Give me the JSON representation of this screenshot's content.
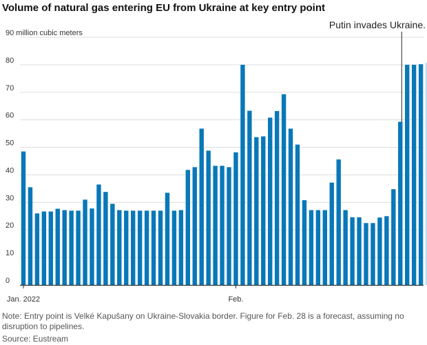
{
  "chart_data": {
    "type": "bar",
    "title": "Volume of natural gas entering EU from Ukraine at key entry point",
    "unit_label": "90 million cubic meters",
    "ylim": [
      0,
      90
    ],
    "yticks": [
      0,
      10,
      20,
      30,
      40,
      50,
      60,
      70,
      80
    ],
    "x_tick_labels": [
      {
        "label": "Jan. 2022",
        "index": 0
      },
      {
        "label": "Feb.",
        "index": 31
      }
    ],
    "grid": true,
    "colors": {
      "bar": "#0878b8",
      "forecast": "#b9dcf2",
      "grid": "#dddddd",
      "axis": "#333333"
    },
    "values": [
      48.5,
      35.5,
      26,
      26.7,
      26.7,
      27.7,
      27.2,
      27,
      27,
      31,
      27.8,
      36.5,
      33.8,
      29.5,
      27.2,
      27,
      27,
      27,
      27,
      27,
      27,
      33.5,
      27,
      27.2,
      41.8,
      42.8,
      56.8,
      48.8,
      43.3,
      43.3,
      42.8,
      48.2,
      80,
      63.3,
      53.7,
      54,
      60.8,
      63.2,
      69.3,
      56.8,
      51,
      30.8,
      27.2,
      27.2,
      27.2,
      37.2,
      45.6,
      27.2,
      24.6,
      24.6,
      22.5,
      22.5,
      24.5,
      25,
      34.8,
      59.3,
      80,
      80,
      80.2,
      80.8
    ],
    "forecast_index": 59,
    "annotation": {
      "text": "Putin invades Ukraine.",
      "index": 55
    },
    "footnote": "Note: Entry point is Velké Kapušany on Ukraine-Slovakia border. Figure for Feb. 28 is a forecast, assuming no disruption to pipelines.",
    "source": "Source: Eustream"
  }
}
